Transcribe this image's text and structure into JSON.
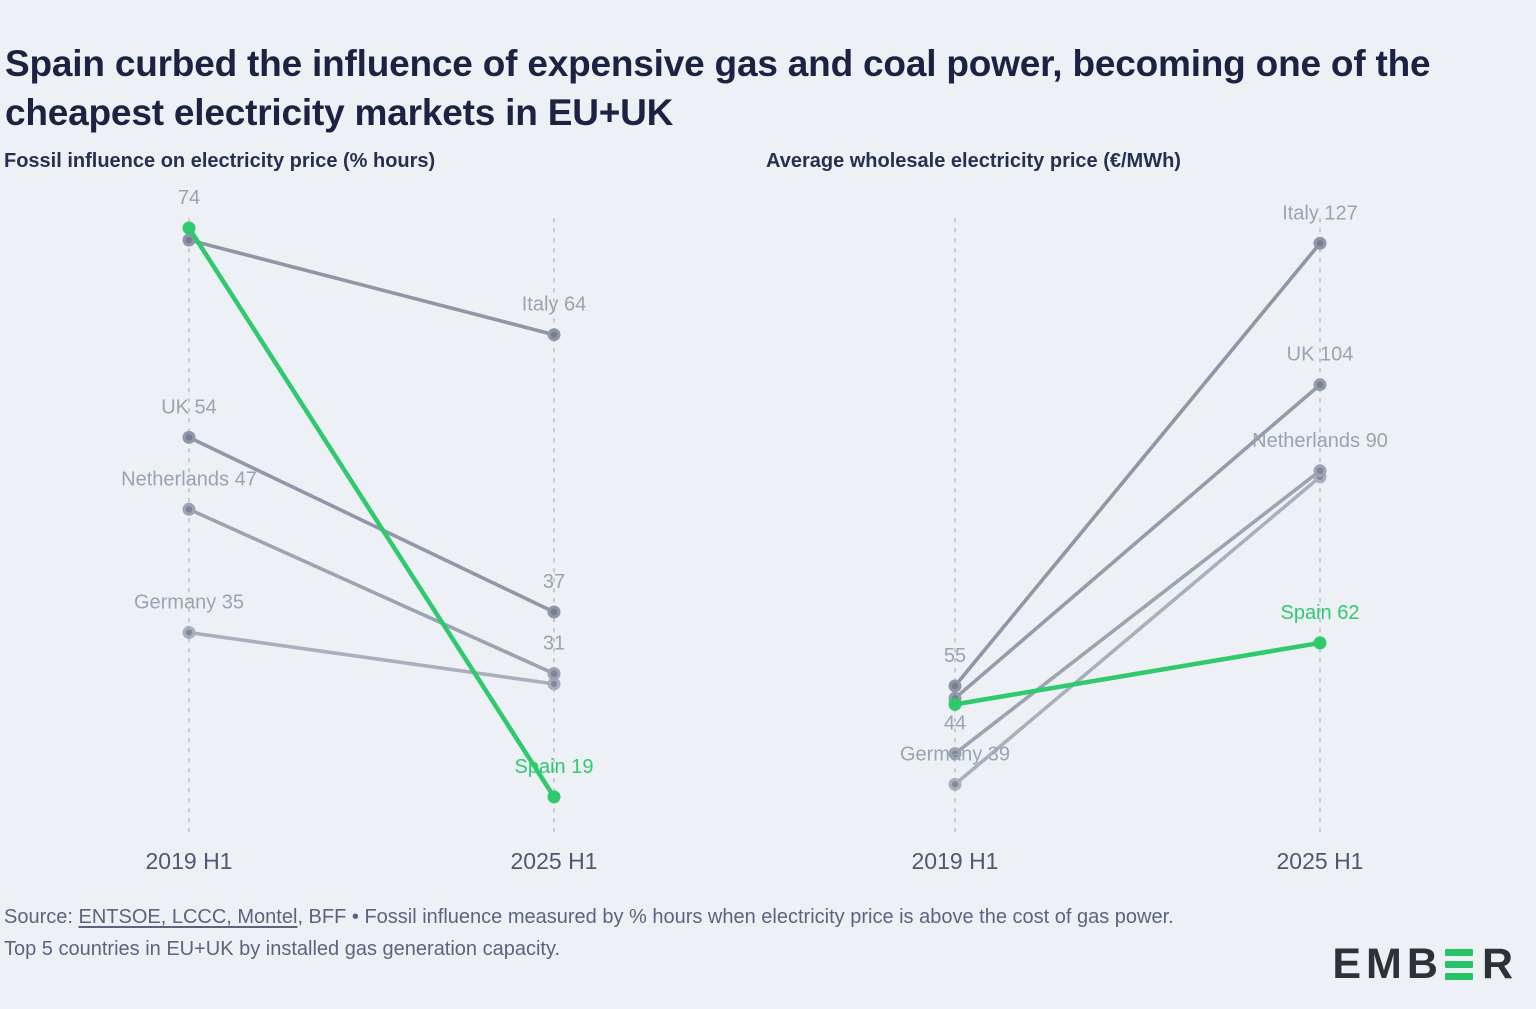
{
  "page": {
    "title": "Spain curbed the influence of expensive gas and coal power, becoming one of the cheapest electricity markets in EU+UK"
  },
  "colors": {
    "background": "#edf1f6",
    "title_text": "#1c2342",
    "panel_title_text": "#273050",
    "green": "#2fc96e",
    "gray_label": "#9aa3b3",
    "axis_label": "#4d5871",
    "dashed_axis": "#c3c9d5",
    "dot_core": "#5d657a",
    "footer_text": "#5a6480",
    "logo_dark": "#2d3138",
    "logo_green": "#27c368"
  },
  "footer": {
    "source_prefix": "Source: ",
    "source_links": "ENTSOE, LCCC, Montel",
    "source_rest": ", BFF • Fossil influence measured by % hours when electricity price is above the cost of gas power.",
    "note": "Top 5 countries in EU+UK by installed gas generation capacity."
  },
  "brand": {
    "name": "EMBER",
    "left": "EMB",
    "right": "R"
  },
  "chart_data": [
    {
      "type": "slope",
      "title": "Fossil influence on electricity price (% hours)",
      "unit": "% hours",
      "x_categories": [
        "2019 H1",
        "2025 H1"
      ],
      "ylim": [
        15,
        78
      ],
      "grid": false,
      "series": [
        {
          "name": "Germany",
          "values": [
            35,
            30
          ],
          "color": "#a9b0bd",
          "highlight": false,
          "start_label": "Germany 35",
          "end_label": ""
        },
        {
          "name": "Netherlands",
          "values": [
            47,
            31
          ],
          "color": "#9ca3b2",
          "highlight": false,
          "start_label": "Netherlands 47",
          "end_label": "31"
        },
        {
          "name": "UK",
          "values": [
            54,
            37
          ],
          "color": "#9097a8",
          "highlight": false,
          "start_label": "UK 54",
          "end_label": "37"
        },
        {
          "name": "Italy",
          "values": [
            74,
            64
          ],
          "color": "#8f96a7",
          "highlight": false,
          "start_label": "74",
          "end_label": "Italy 64"
        },
        {
          "name": "Spain",
          "values": [
            74,
            19
          ],
          "color": "#2fc96e",
          "highlight": true,
          "start_label": "",
          "end_label": "Spain 19"
        }
      ]
    },
    {
      "type": "slope",
      "title": "Average wholesale electricity price (€/MWh)",
      "unit": "€/MWh",
      "x_categories": [
        "2019 H1",
        "2025 H1"
      ],
      "ylim": [
        35,
        130
      ],
      "grid": false,
      "series": [
        {
          "name": "Germany",
          "values": [
            39,
            89
          ],
          "color": "#a9b0bd",
          "highlight": false,
          "start_label": "Germany 39",
          "end_label": ""
        },
        {
          "name": "Netherlands",
          "values": [
            44,
            90
          ],
          "color": "#9ca3b2",
          "highlight": false,
          "start_label": "44",
          "end_label": "Netherlands 90"
        },
        {
          "name": "UK",
          "values": [
            53,
            104
          ],
          "color": "#949bac",
          "highlight": false,
          "start_label": "",
          "end_label": "UK 104"
        },
        {
          "name": "Italy",
          "values": [
            55,
            127
          ],
          "color": "#8f96a7",
          "highlight": false,
          "start_label": "55",
          "end_label": "Italy 127"
        },
        {
          "name": "Spain",
          "values": [
            52,
            62
          ],
          "color": "#2fc96e",
          "highlight": true,
          "start_label": "",
          "end_label": "Spain 62"
        }
      ]
    }
  ]
}
